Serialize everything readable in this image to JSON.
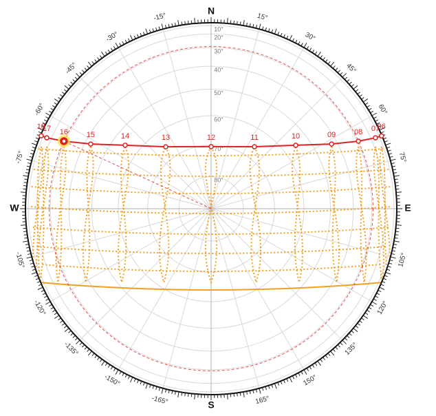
{
  "chart_data": {
    "type": "sunpath",
    "compass": [
      {
        "value": 0,
        "label": "N"
      },
      {
        "value": 90,
        "label": "E"
      },
      {
        "value": 180,
        "label": "S"
      },
      {
        "value": -90,
        "label": "W"
      }
    ],
    "azimuth_ticks": [
      {
        "value": 15,
        "label": "15°"
      },
      {
        "value": 30,
        "label": "30°"
      },
      {
        "value": 45,
        "label": "45°"
      },
      {
        "value": 60,
        "label": "60°"
      },
      {
        "value": 75,
        "label": "75°"
      },
      {
        "value": 105,
        "label": "105°"
      },
      {
        "value": 120,
        "label": "120°"
      },
      {
        "value": 135,
        "label": "135°"
      },
      {
        "value": 150,
        "label": "150°"
      },
      {
        "value": 165,
        "label": "165°"
      },
      {
        "value": -15,
        "label": "-15°"
      },
      {
        "value": -30,
        "label": "-30°"
      },
      {
        "value": -45,
        "label": "-45°"
      },
      {
        "value": -60,
        "label": "-60°"
      },
      {
        "value": -75,
        "label": "-75°"
      },
      {
        "value": -105,
        "label": "-105°"
      },
      {
        "value": -120,
        "label": "-120°"
      },
      {
        "value": -135,
        "label": "-135°"
      },
      {
        "value": -150,
        "label": "-150°"
      },
      {
        "value": -165,
        "label": "-165°"
      }
    ],
    "altitude_ticks": [
      {
        "value": 10,
        "label": "10°"
      },
      {
        "value": 20,
        "label": "20°"
      },
      {
        "value": 30,
        "label": "30°"
      },
      {
        "value": 40,
        "label": "40°"
      },
      {
        "value": 50,
        "label": "50°"
      },
      {
        "value": 60,
        "label": "60°"
      },
      {
        "value": 70,
        "label": "70°"
      },
      {
        "value": 80,
        "label": "80°"
      }
    ],
    "sun_path": [
      {
        "label": "06",
        "azimuth": 66.9,
        "altitude": 4.0
      },
      {
        "label": "07",
        "azimuth": 66.7,
        "altitude": 15.5
      },
      {
        "label": "08",
        "azimuth": 65.4,
        "altitude": 29.3
      },
      {
        "label": "09",
        "azimuth": 61.8,
        "altitude": 42.6
      },
      {
        "label": "10",
        "azimuth": 53.2,
        "altitude": 55.3
      },
      {
        "label": "11",
        "azimuth": 35.0,
        "altitude": 66.0
      },
      {
        "label": "12",
        "azimuth": 0,
        "altitude": 70.5
      },
      {
        "label": "13",
        "azimuth": -36.3,
        "altitude": 65.6
      },
      {
        "label": "14",
        "azimuth": -53.6,
        "altitude": 54.9
      },
      {
        "label": "15",
        "azimuth": -61.8,
        "altitude": 42.6
      },
      {
        "label": "16",
        "azimuth": -65.4,
        "altitude": 29.3
      },
      {
        "label": "17",
        "azimuth": -66.7,
        "altitude": 15.5
      },
      {
        "label": "18",
        "azimuth": -66.8,
        "altitude": 5.4
      }
    ],
    "sun": {
      "azimuth": -65.4,
      "altitude": 29.3
    },
    "color": "#e02020",
    "grid_color": "#f0a020"
  }
}
